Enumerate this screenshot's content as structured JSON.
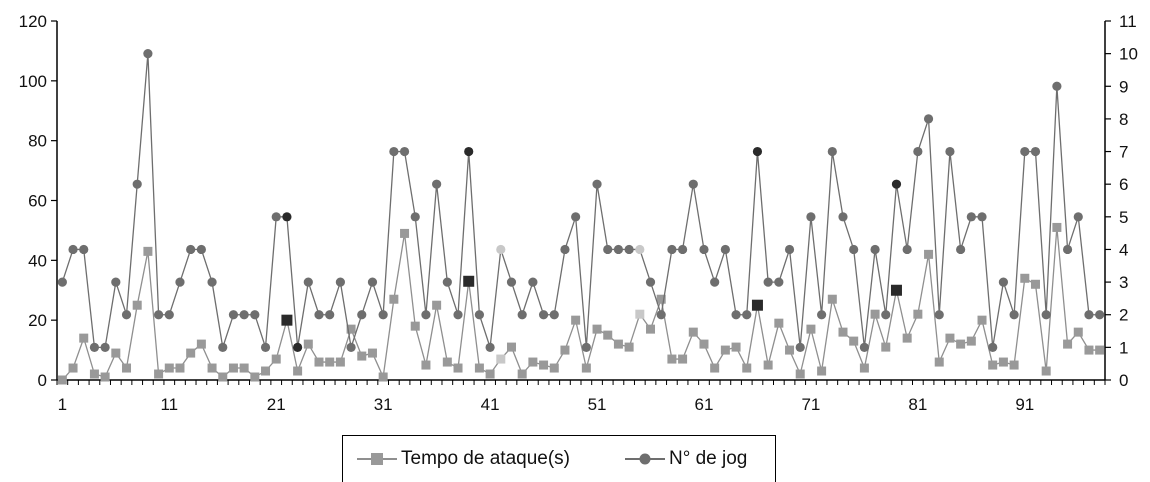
{
  "chart_data": {
    "type": "line",
    "title": "",
    "xlabel": "",
    "ylabel": "",
    "x": [
      1,
      2,
      3,
      4,
      5,
      6,
      7,
      8,
      9,
      10,
      11,
      12,
      13,
      14,
      15,
      16,
      17,
      18,
      19,
      20,
      21,
      22,
      23,
      24,
      25,
      26,
      27,
      28,
      29,
      30,
      31,
      32,
      33,
      34,
      35,
      36,
      37,
      38,
      39,
      40,
      41,
      42,
      43,
      44,
      45,
      46,
      47,
      48,
      49,
      50,
      51,
      52,
      53,
      54,
      55,
      56,
      57,
      58,
      59,
      60,
      61,
      62,
      63,
      64,
      65,
      66,
      67,
      68,
      69,
      70,
      71,
      72,
      73,
      74,
      75,
      76,
      77,
      78,
      79,
      80,
      81,
      82,
      83,
      84,
      85,
      86,
      87,
      88,
      89,
      90,
      91,
      92,
      93,
      94,
      95,
      96,
      97,
      98
    ],
    "x_tick_labels": [
      "1",
      "11",
      "21",
      "31",
      "41",
      "51",
      "61",
      "71",
      "81",
      "91"
    ],
    "y_left": {
      "ticks": [
        "0",
        "20",
        "40",
        "60",
        "80",
        "100",
        "120"
      ],
      "lim": [
        0,
        120
      ]
    },
    "y_right": {
      "ticks": [
        "0",
        "1",
        "2",
        "3",
        "4",
        "5",
        "6",
        "7",
        "8",
        "9",
        "10",
        "11"
      ],
      "lim": [
        0,
        11
      ]
    },
    "series": [
      {
        "name": "Tempo de ataque(s)",
        "axis": "left",
        "marker": "square",
        "color": "#8f8f8f",
        "values": [
          0,
          4,
          14,
          2,
          1,
          9,
          4,
          25,
          43,
          2,
          4,
          4,
          9,
          12,
          4,
          1,
          4,
          4,
          1,
          3,
          7,
          20,
          3,
          12,
          6,
          6,
          6,
          17,
          8,
          9,
          1,
          27,
          49,
          18,
          5,
          25,
          6,
          4,
          33,
          4,
          2,
          7,
          11,
          2,
          6,
          5,
          4,
          10,
          20,
          4,
          17,
          15,
          12,
          11,
          22,
          17,
          27,
          7,
          7,
          16,
          12,
          4,
          10,
          11,
          4,
          25,
          5,
          19,
          10,
          2,
          17,
          3,
          27,
          16,
          13,
          4,
          22,
          11,
          30,
          14,
          22,
          42,
          6,
          14,
          12,
          13,
          20,
          5,
          6,
          5,
          34,
          32,
          3,
          51,
          12,
          16,
          10,
          10
        ],
        "highlight_dark": [
          22,
          39,
          66,
          79
        ],
        "highlight_light": [
          42,
          55
        ]
      },
      {
        "name": "N° de jog",
        "axis": "right",
        "marker": "circle",
        "color": "#6e6e6e",
        "values": [
          3,
          4,
          4,
          1,
          1,
          3,
          2,
          6,
          10,
          2,
          2,
          3,
          4,
          4,
          3,
          1,
          2,
          2,
          2,
          1,
          5,
          5,
          1,
          3,
          2,
          2,
          3,
          1,
          2,
          3,
          2,
          7,
          7,
          5,
          2,
          6,
          3,
          2,
          7,
          2,
          1,
          4,
          3,
          2,
          3,
          2,
          2,
          4,
          5,
          1,
          6,
          4,
          4,
          4,
          4,
          3,
          2,
          4,
          4,
          6,
          4,
          3,
          4,
          2,
          2,
          7,
          3,
          3,
          4,
          1,
          5,
          2,
          7,
          5,
          4,
          1,
          4,
          2,
          6,
          4,
          7,
          8,
          2,
          7,
          4,
          5,
          5,
          1,
          3,
          2,
          7,
          7,
          2,
          9,
          4,
          5,
          2,
          2
        ],
        "highlight_dark": [
          22,
          23,
          39,
          66,
          79
        ],
        "highlight_light": [
          42,
          55
        ]
      }
    ],
    "legend": {
      "placement": "bottom-center"
    },
    "grid": false
  }
}
